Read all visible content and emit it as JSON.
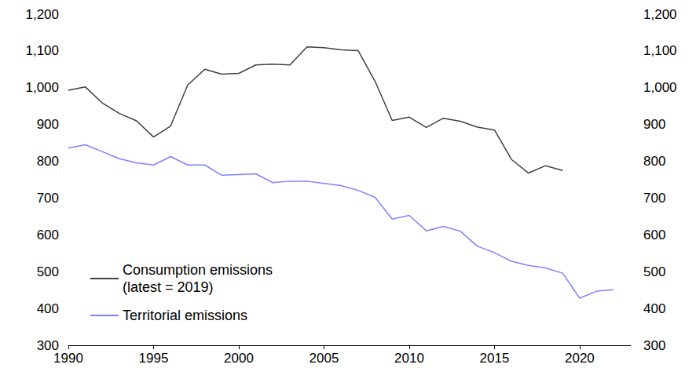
{
  "chart_data": {
    "type": "line",
    "x": [
      1990,
      1991,
      1992,
      1993,
      1994,
      1995,
      1996,
      1997,
      1998,
      1999,
      2000,
      2001,
      2002,
      2003,
      2004,
      2005,
      2006,
      2007,
      2008,
      2009,
      2010,
      2011,
      2012,
      2013,
      2014,
      2015,
      2016,
      2017,
      2018,
      2019,
      2020,
      2021,
      2022
    ],
    "series": [
      {
        "name": "Consumption emissions\n(latest = 2019)",
        "color": "#404040",
        "values": [
          993,
          1002,
          958,
          930,
          910,
          866,
          896,
          1007,
          1050,
          1037,
          1039,
          1062,
          1064,
          1062,
          1111,
          1109,
          1103,
          1101,
          1017,
          911,
          920,
          892,
          917,
          909,
          893,
          885,
          805,
          768,
          788,
          775,
          null,
          null,
          null
        ]
      },
      {
        "name": "Territorial emissions",
        "color": "#8080ff",
        "values": [
          836,
          845,
          826,
          807,
          796,
          790,
          813,
          790,
          790,
          762,
          764,
          766,
          742,
          746,
          746,
          740,
          734,
          721,
          702,
          643,
          653,
          611,
          623,
          610,
          569,
          552,
          528,
          517,
          510,
          496,
          428,
          447,
          451
        ]
      }
    ],
    "xlim": [
      1990,
      2023
    ],
    "xticks": [
      1990,
      1995,
      2000,
      2005,
      2010,
      2015,
      2020
    ],
    "ylim": [
      300,
      1200
    ],
    "yticks": [
      300,
      400,
      500,
      600,
      700,
      800,
      900,
      {
        "value": 1000,
        "label": "1,000"
      },
      {
        "value": 1100,
        "label": "1,100"
      },
      {
        "value": 1200,
        "label": "1,200"
      }
    ],
    "y2lim": [
      300,
      1200
    ],
    "y2ticks": [
      300,
      400,
      500,
      600,
      700,
      800,
      900,
      {
        "value": 1000,
        "label": "1,000"
      },
      {
        "value": 1100,
        "label": "1,100"
      },
      {
        "value": 1200,
        "label": "1,200"
      }
    ],
    "legend": "lower left",
    "grid": false
  }
}
